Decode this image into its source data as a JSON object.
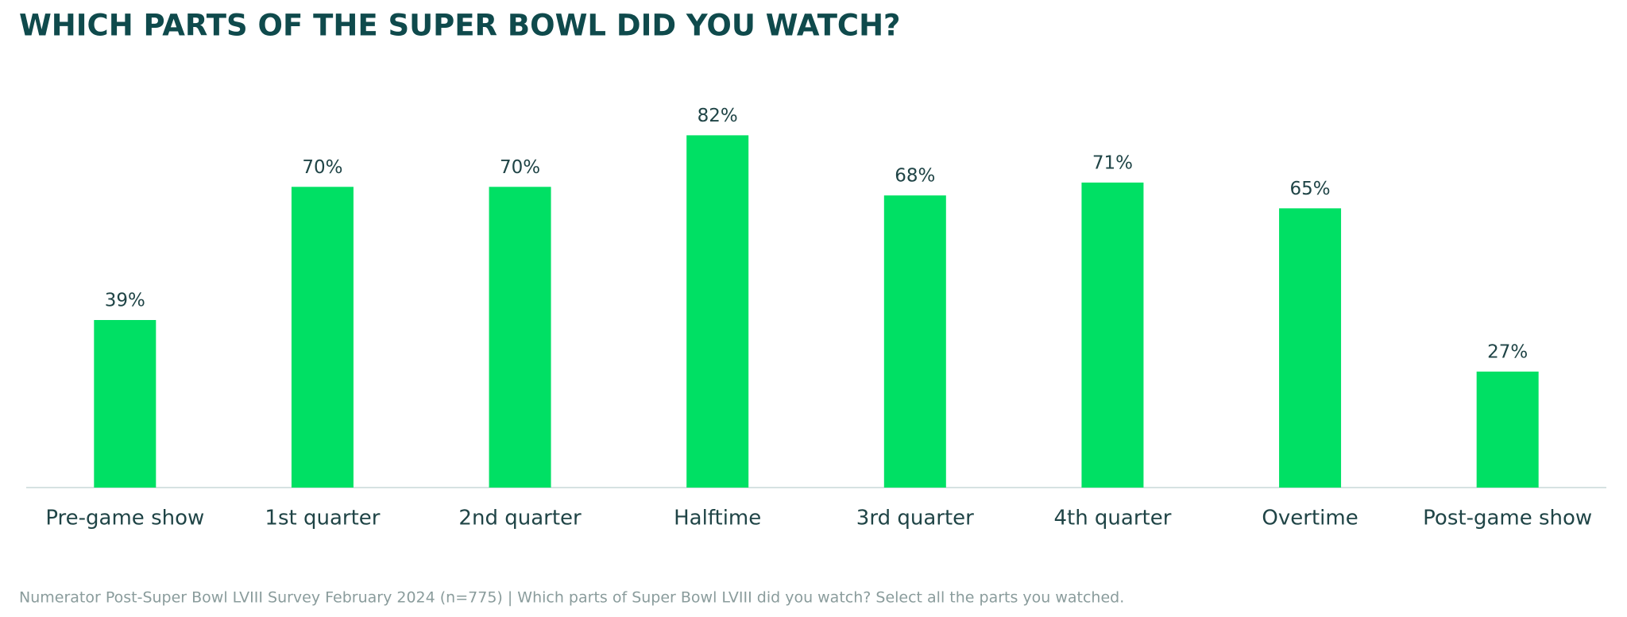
{
  "chart_data": {
    "type": "bar",
    "title": "WHICH PARTS OF THE SUPER BOWL DID YOU WATCH?",
    "categories": [
      "Pre-game show",
      "1st quarter",
      "2nd quarter",
      "Halftime",
      "3rd quarter",
      "4th quarter",
      "Overtime",
      "Post-game show"
    ],
    "values": [
      39,
      70,
      70,
      82,
      68,
      71,
      65,
      27
    ],
    "value_labels": [
      "39%",
      "70%",
      "70%",
      "82%",
      "68%",
      "71%",
      "65%",
      "27%"
    ],
    "color": "#00e064",
    "footnote": "Numerator Post-Super Bowl LVIII Survey February 2024 (n=775) | Which parts of Super Bowl LVIII did you watch? Select all the parts you watched."
  }
}
